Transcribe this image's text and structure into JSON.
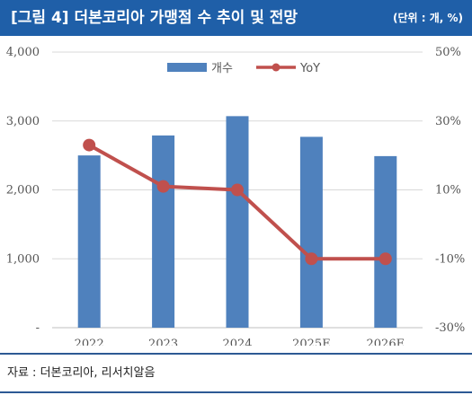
{
  "header": {
    "title": "[그림 4] 더본코리아 가맹점 수 추이 및 전망",
    "unit": "(단위 : 개, %)"
  },
  "footer": {
    "source": "자료 : 더본코리아, 리서치알음"
  },
  "colors": {
    "header_bg": "#1f5fa8",
    "bar": "#4f81bd",
    "line": "#c0504d"
  },
  "chart_data": {
    "type": "bar+line",
    "categories": [
      "2022",
      "2023",
      "2024",
      "2025E",
      "2026E"
    ],
    "series": [
      {
        "name": "개수",
        "type": "bar",
        "axis": "left",
        "values": [
          2500,
          2790,
          3070,
          2770,
          2490
        ]
      },
      {
        "name": "YoY",
        "type": "line",
        "axis": "right",
        "values": [
          23,
          11,
          10,
          -10,
          -10
        ]
      }
    ],
    "y_left": {
      "min": 0,
      "max": 4000,
      "ticks": [
        "-",
        "1,000",
        "2,000",
        "3,000",
        "4,000"
      ]
    },
    "y_right": {
      "min": -30,
      "max": 50,
      "ticks": [
        "-30%",
        "-10%",
        "10%",
        "30%",
        "50%"
      ]
    },
    "legend_position": "top-center",
    "grid": true
  }
}
